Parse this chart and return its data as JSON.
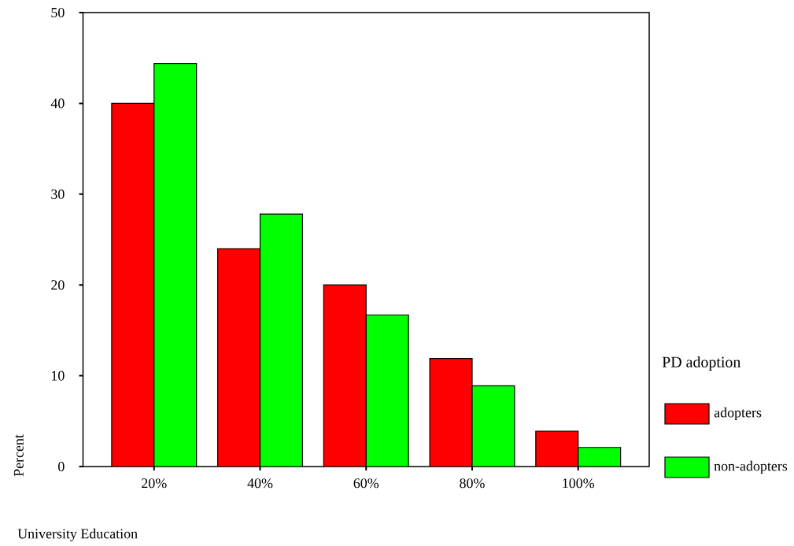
{
  "chart_data": {
    "type": "bar",
    "xlabel": "University Education",
    "ylabel": "Percent",
    "legend_title": "PD adoption",
    "categories": [
      "20%",
      "40%",
      "60%",
      "80%",
      "100%"
    ],
    "series": [
      {
        "name": "adopters",
        "color": "#ff0000",
        "values": [
          40,
          24,
          20,
          11.9,
          3.9
        ]
      },
      {
        "name": "non-adopters",
        "color": "#00ff00",
        "values": [
          44.4,
          27.8,
          16.7,
          8.9,
          2.1
        ]
      }
    ],
    "ylim": [
      0,
      50
    ],
    "yticks": [
      0,
      10,
      20,
      30,
      40,
      50
    ],
    "grid": false,
    "legend": "right"
  }
}
